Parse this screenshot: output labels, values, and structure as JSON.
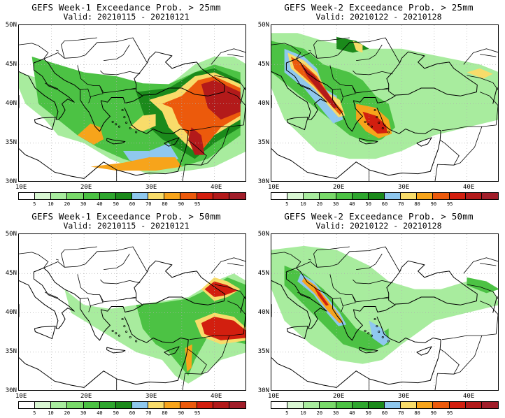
{
  "colorbar": {
    "colors": [
      "#ffffff",
      "#d9f7d3",
      "#a8ec9e",
      "#79d96a",
      "#4cc244",
      "#2ea62e",
      "#1b8a1b",
      "#8fc8ee",
      "#f8dc6a",
      "#f7a41b",
      "#ec5a0c",
      "#d21f0f",
      "#b31a1a",
      "#a11e2a"
    ],
    "labels": [
      "5",
      "10",
      "20",
      "30",
      "40",
      "50",
      "60",
      "70",
      "80",
      "90",
      "95"
    ]
  },
  "axes": {
    "lat_labels": [
      "50N",
      "45N",
      "40N",
      "35N",
      "30N"
    ],
    "lon_labels": [
      "10E",
      "20E",
      "30E",
      "40E"
    ]
  },
  "panels": [
    {
      "title": "GEFS Week-1 Exceedance Prob. > 25mm",
      "valid": "Valid: 20210115 - 20210121"
    },
    {
      "title": "GEFS Week-2 Exceedance Prob. > 25mm",
      "valid": "Valid: 20210122 - 20210128"
    },
    {
      "title": "GEFS Week-1 Exceedance Prob. > 50mm",
      "valid": "Valid: 20210115 - 20210121"
    },
    {
      "title": "GEFS Week-2 Exceedance Prob. > 50mm",
      "valid": "Valid: 20210122 - 20210128"
    }
  ]
}
